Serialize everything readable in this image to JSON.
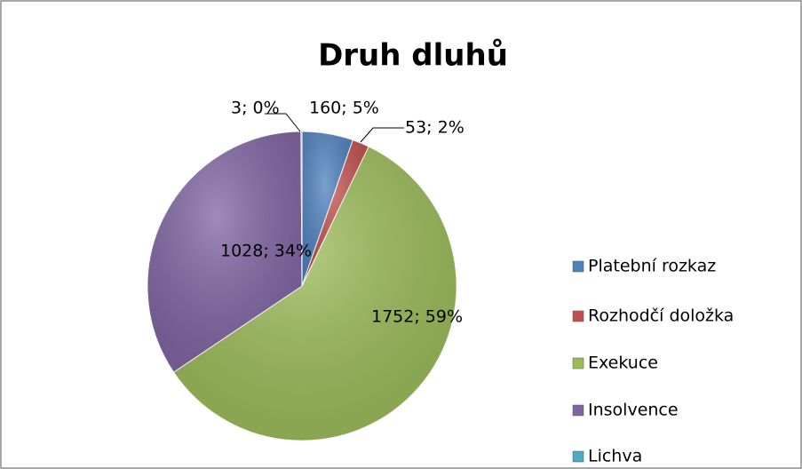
{
  "chart_data": {
    "type": "pie",
    "title": "Druh dluhů",
    "categories": [
      "Platební rozkaz",
      "Rozhodčí doložka",
      "Exekuce",
      "Insolvence",
      "Lichva"
    ],
    "values": [
      160,
      53,
      1752,
      1028,
      3
    ],
    "value_labels": [
      "160; 5%",
      "53; 2%",
      "1752; 59%",
      "1028; 34%",
      "3; 0%"
    ],
    "colors": [
      "#4f81bd",
      "#c0504d",
      "#9bbb59",
      "#8064a2",
      "#4bacc6"
    ],
    "legend": "right"
  }
}
